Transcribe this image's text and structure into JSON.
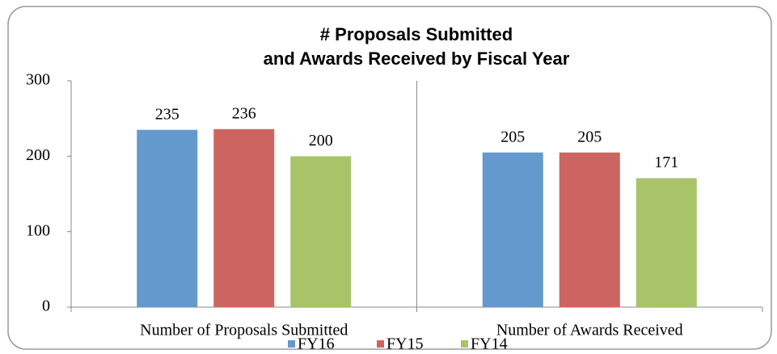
{
  "chart_data": {
    "type": "bar",
    "title": [
      "# Proposals Submitted",
      "and Awards Received by Fiscal Year"
    ],
    "categories": [
      "Number of Proposals Submitted",
      "Number of Awards Received"
    ],
    "series": [
      {
        "name": "FY16",
        "color": "#6399cd",
        "values": [
          235,
          205
        ]
      },
      {
        "name": "FY15",
        "color": "#cc6560",
        "values": [
          236,
          205
        ]
      },
      {
        "name": "FY14",
        "color": "#a9c36b",
        "values": [
          200,
          171
        ]
      }
    ],
    "ylim": [
      0,
      300
    ],
    "yticks": [
      0,
      100,
      200,
      300
    ],
    "grid": false,
    "legend": "bottom"
  }
}
